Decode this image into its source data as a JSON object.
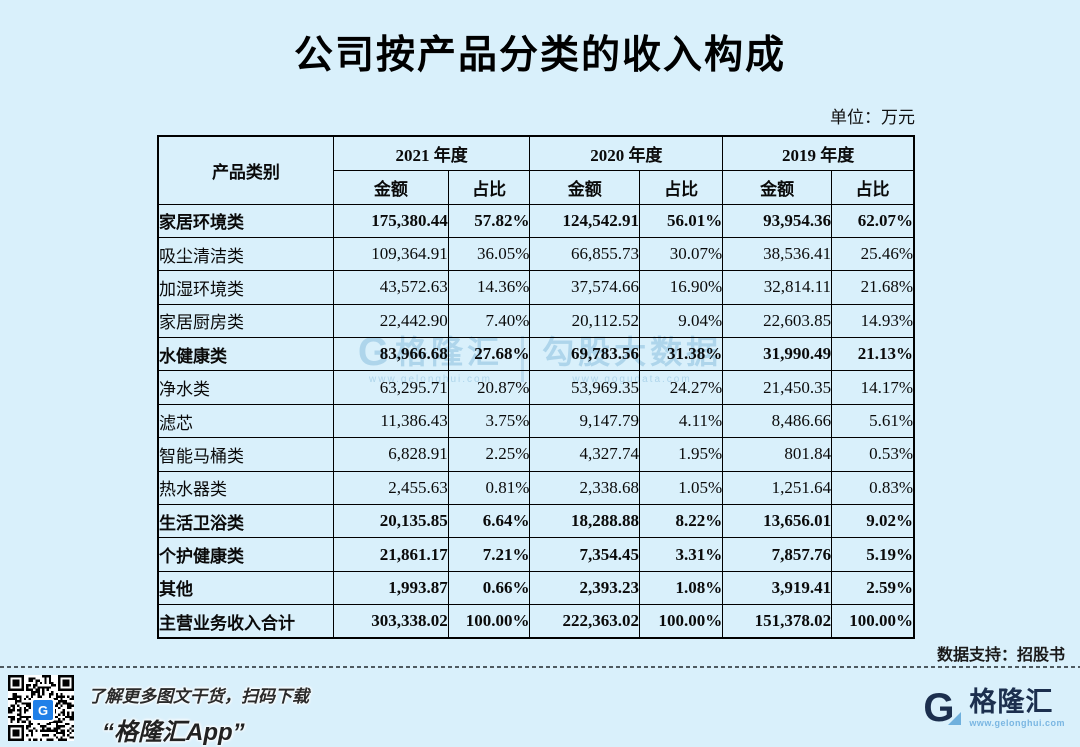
{
  "title": "公司按产品分类的收入构成",
  "unit_label": "单位：万元",
  "data_support": "数据支持：招股书",
  "table": {
    "product_header": "产品类别",
    "year_headers": [
      "2021 年度",
      "2020 年度",
      "2019 年度"
    ],
    "amount_header": "金额",
    "share_header": "占比",
    "rows": [
      {
        "name": "家居环境类",
        "values": [
          "175,380.44",
          "57.82%",
          "124,542.91",
          "56.01%",
          "93,954.36",
          "62.07%"
        ]
      },
      {
        "name": "吸尘清洁类",
        "values": [
          "109,364.91",
          "36.05%",
          "66,855.73",
          "30.07%",
          "38,536.41",
          "25.46%"
        ]
      },
      {
        "name": "加湿环境类",
        "values": [
          "43,572.63",
          "14.36%",
          "37,574.66",
          "16.90%",
          "32,814.11",
          "21.68%"
        ]
      },
      {
        "name": "家居厨房类",
        "values": [
          "22,442.90",
          "7.40%",
          "20,112.52",
          "9.04%",
          "22,603.85",
          "14.93%"
        ]
      },
      {
        "name": "水健康类",
        "values": [
          "83,966.68",
          "27.68%",
          "69,783.56",
          "31.38%",
          "31,990.49",
          "21.13%"
        ]
      },
      {
        "name": "净水类",
        "values": [
          "63,295.71",
          "20.87%",
          "53,969.35",
          "24.27%",
          "21,450.35",
          "14.17%"
        ]
      },
      {
        "name": "滤芯",
        "values": [
          "11,386.43",
          "3.75%",
          "9,147.79",
          "4.11%",
          "8,486.66",
          "5.61%"
        ]
      },
      {
        "name": "智能马桶类",
        "values": [
          "6,828.91",
          "2.25%",
          "4,327.74",
          "1.95%",
          "801.84",
          "0.53%"
        ]
      },
      {
        "name": "热水器类",
        "values": [
          "2,455.63",
          "0.81%",
          "2,338.68",
          "1.05%",
          "1,251.64",
          "0.83%"
        ]
      },
      {
        "name": "生活卫浴类",
        "values": [
          "20,135.85",
          "6.64%",
          "18,288.88",
          "8.22%",
          "13,656.01",
          "9.02%"
        ]
      },
      {
        "name": "个护健康类",
        "values": [
          "21,861.17",
          "7.21%",
          "7,354.45",
          "3.31%",
          "7,857.76",
          "5.19%"
        ]
      },
      {
        "name": "其他",
        "values": [
          "1,993.87",
          "0.66%",
          "2,393.23",
          "1.08%",
          "3,919.41",
          "2.59%"
        ]
      },
      {
        "name": "主营业务收入合计",
        "values": [
          "303,338.02",
          "100.00%",
          "222,363.02",
          "100.00%",
          "151,378.02",
          "100.00%"
        ]
      }
    ]
  },
  "watermark": {
    "brand_letter": "G",
    "brand": "格隆汇",
    "brand_url": "www.gelonghui.com",
    "partner": "勾股大数据",
    "partner_url": "www.gogudata.com"
  },
  "footer": {
    "qr_badge_letter": "G",
    "caption_line1": "了解更多图文干货，扫码下载",
    "caption_line2": "“格隆汇App”",
    "logo_letter": "G",
    "logo_text": "格隆汇",
    "logo_url": "www.gelonghui.com"
  },
  "colors": {
    "background": "#d9f0fb",
    "table_border": "#000000",
    "watermark": "#aed5eb",
    "qr_badge_blue": "#2080e8",
    "logo_navy": "#1c2f4e",
    "logo_lightblue": "#7ab6e2"
  }
}
